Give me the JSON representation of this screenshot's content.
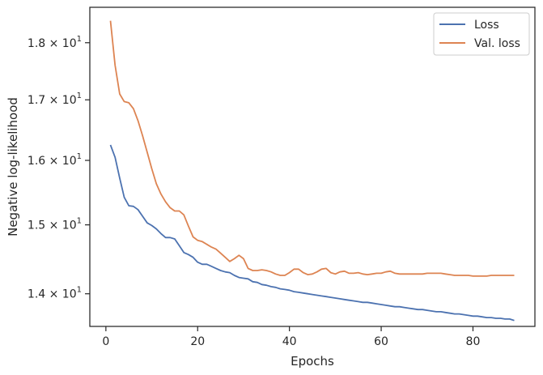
{
  "chart_data": {
    "type": "line",
    "title": "",
    "xlabel": "Epochs",
    "ylabel": "Negative log-likelihood",
    "yscale": "log",
    "xlim": [
      -3.5,
      93.5
    ],
    "ylim": [
      13.55,
      18.65
    ],
    "x_ticks": [
      {
        "value": 0,
        "label": "0"
      },
      {
        "value": 20,
        "label": "20"
      },
      {
        "value": 40,
        "label": "40"
      },
      {
        "value": 60,
        "label": "60"
      },
      {
        "value": 80,
        "label": "80"
      }
    ],
    "y_ticks": [
      {
        "value": 14,
        "base": "1.4",
        "mult": "×",
        "pow": "10",
        "exp": "1"
      },
      {
        "value": 15,
        "base": "1.5",
        "mult": "×",
        "pow": "10",
        "exp": "1"
      },
      {
        "value": 16,
        "base": "1.6",
        "mult": "×",
        "pow": "10",
        "exp": "1"
      },
      {
        "value": 17,
        "base": "1.7",
        "mult": "×",
        "pow": "10",
        "exp": "1"
      },
      {
        "value": 18,
        "base": "1.8",
        "mult": "×",
        "pow": "10",
        "exp": "1"
      }
    ],
    "grid": false,
    "legend_position": "top-right",
    "x": [
      1,
      2,
      3,
      4,
      5,
      6,
      7,
      8,
      9,
      10,
      11,
      12,
      13,
      14,
      15,
      16,
      17,
      18,
      19,
      20,
      21,
      22,
      23,
      24,
      25,
      26,
      27,
      28,
      29,
      30,
      31,
      32,
      33,
      34,
      35,
      36,
      37,
      38,
      39,
      40,
      41,
      42,
      43,
      44,
      45,
      46,
      47,
      48,
      49,
      50,
      51,
      52,
      53,
      54,
      55,
      56,
      57,
      58,
      59,
      60,
      61,
      62,
      63,
      64,
      65,
      66,
      67,
      68,
      69,
      70,
      71,
      72,
      73,
      74,
      75,
      76,
      77,
      78,
      79,
      80,
      81,
      82,
      83,
      84,
      85,
      86,
      87,
      88,
      89
    ],
    "series": [
      {
        "name": "Loss",
        "color": "#4c72b0",
        "values": [
          16.25,
          16.05,
          15.72,
          15.42,
          15.29,
          15.28,
          15.23,
          15.13,
          15.03,
          14.99,
          14.94,
          14.87,
          14.81,
          14.81,
          14.79,
          14.69,
          14.59,
          14.56,
          14.52,
          14.45,
          14.42,
          14.42,
          14.39,
          14.36,
          14.33,
          14.31,
          14.3,
          14.26,
          14.23,
          14.22,
          14.21,
          14.17,
          14.16,
          14.13,
          14.12,
          14.1,
          14.09,
          14.07,
          14.06,
          14.05,
          14.03,
          14.02,
          14.01,
          14.0,
          13.99,
          13.98,
          13.97,
          13.96,
          13.95,
          13.94,
          13.93,
          13.92,
          13.91,
          13.9,
          13.89,
          13.88,
          13.88,
          13.87,
          13.86,
          13.85,
          13.84,
          13.83,
          13.82,
          13.82,
          13.81,
          13.8,
          13.79,
          13.78,
          13.78,
          13.77,
          13.76,
          13.75,
          13.75,
          13.74,
          13.73,
          13.72,
          13.72,
          13.71,
          13.7,
          13.69,
          13.69,
          13.68,
          13.67,
          13.67,
          13.66,
          13.66,
          13.65,
          13.65,
          13.63
        ]
      },
      {
        "name": "Val. loss",
        "color": "#dd8452",
        "values": [
          18.4,
          17.6,
          17.1,
          16.97,
          16.95,
          16.85,
          16.65,
          16.4,
          16.13,
          15.87,
          15.63,
          15.47,
          15.35,
          15.26,
          15.21,
          15.21,
          15.15,
          14.98,
          14.82,
          14.77,
          14.75,
          14.71,
          14.67,
          14.64,
          14.58,
          14.52,
          14.46,
          14.5,
          14.55,
          14.5,
          14.36,
          14.33,
          14.33,
          14.34,
          14.33,
          14.31,
          14.28,
          14.26,
          14.26,
          14.3,
          14.35,
          14.35,
          14.3,
          14.27,
          14.28,
          14.31,
          14.35,
          14.36,
          14.3,
          14.28,
          14.31,
          14.32,
          14.29,
          14.29,
          14.3,
          14.28,
          14.27,
          14.28,
          14.29,
          14.29,
          14.31,
          14.32,
          14.29,
          14.28,
          14.28,
          14.28,
          14.28,
          14.28,
          14.28,
          14.29,
          14.29,
          14.29,
          14.29,
          14.28,
          14.27,
          14.26,
          14.26,
          14.26,
          14.26,
          14.25,
          14.25,
          14.25,
          14.25,
          14.26,
          14.26,
          14.26,
          14.26,
          14.26,
          14.26
        ]
      }
    ]
  }
}
